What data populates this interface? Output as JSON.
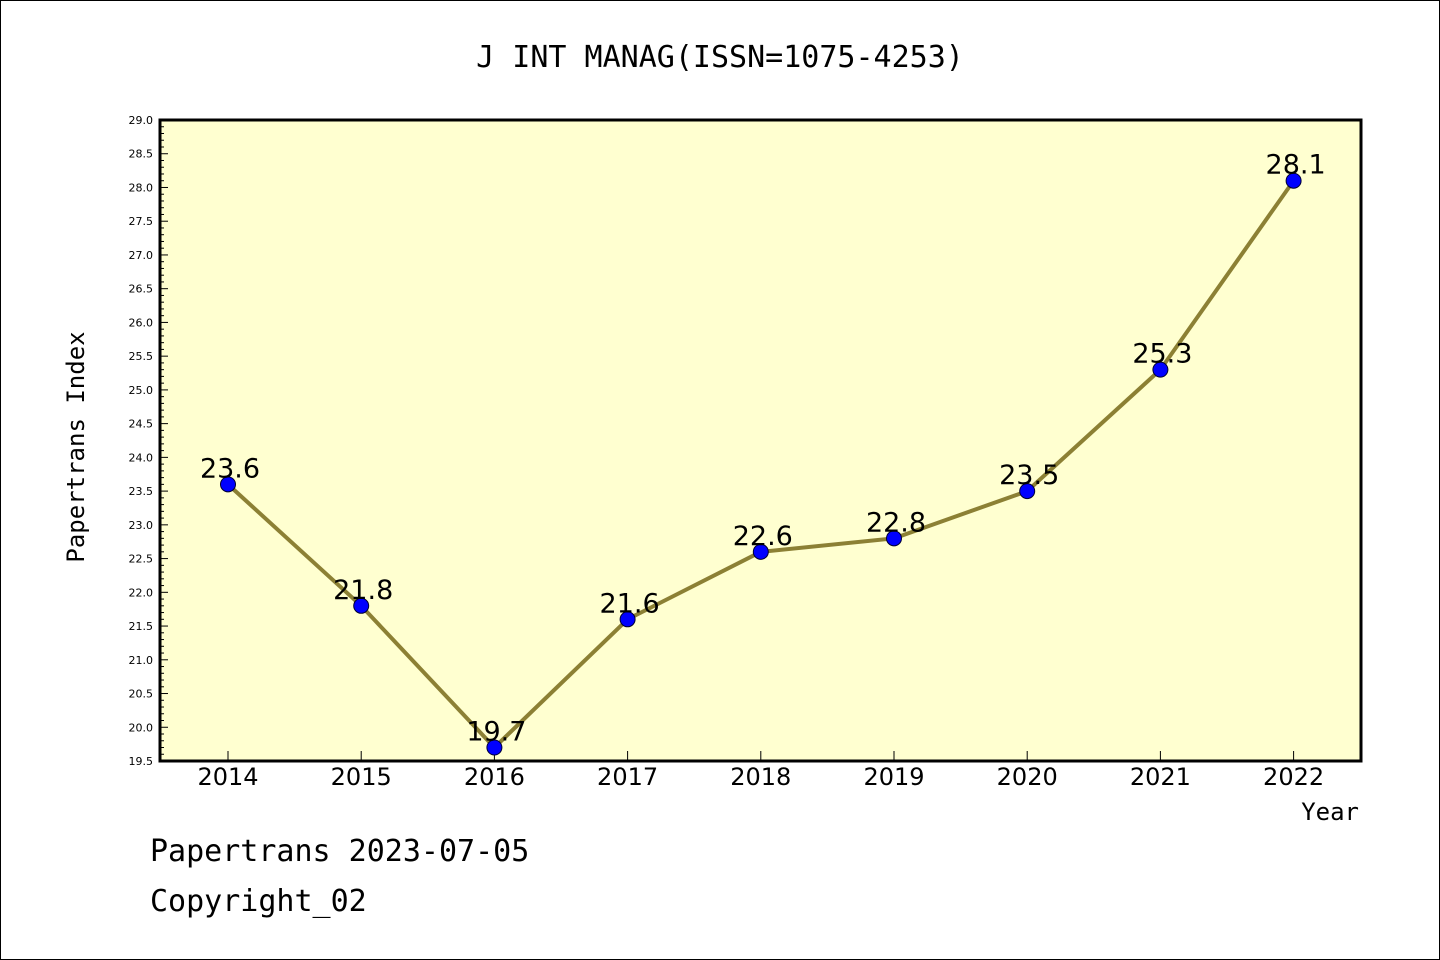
{
  "chart_data": {
    "type": "line",
    "title": "J INT MANAG(ISSN=1075-4253)",
    "xlabel": "Year",
    "ylabel": "Papertrans Index",
    "categories": [
      "2014",
      "2015",
      "2016",
      "2017",
      "2018",
      "2019",
      "2020",
      "2021",
      "2022"
    ],
    "series": [
      {
        "values": [
          23.6,
          21.8,
          19.7,
          21.6,
          22.6,
          22.8,
          23.5,
          25.3,
          28.1
        ],
        "labels": [
          "23.6",
          "21.8",
          "19.7",
          "21.6",
          "22.6",
          "22.8",
          "23.5",
          "25.3",
          "28.1"
        ],
        "line_color": "#8c8034",
        "marker_color": "#0000ff"
      }
    ],
    "ylim": [
      19.5,
      29.0
    ],
    "yticks": [
      "19.5",
      "20.0",
      "20.5",
      "21.0",
      "21.5",
      "22.0",
      "22.5",
      "23.0",
      "23.5",
      "24.0",
      "24.5",
      "25.0",
      "25.5",
      "26.0",
      "26.5",
      "27.0",
      "27.5",
      "28.0",
      "28.5",
      "29.0"
    ],
    "grid": false,
    "plot_background": "#ffffd0"
  },
  "footer": {
    "line1": "Papertrans 2023-07-05",
    "line2": "Copyright_02"
  }
}
